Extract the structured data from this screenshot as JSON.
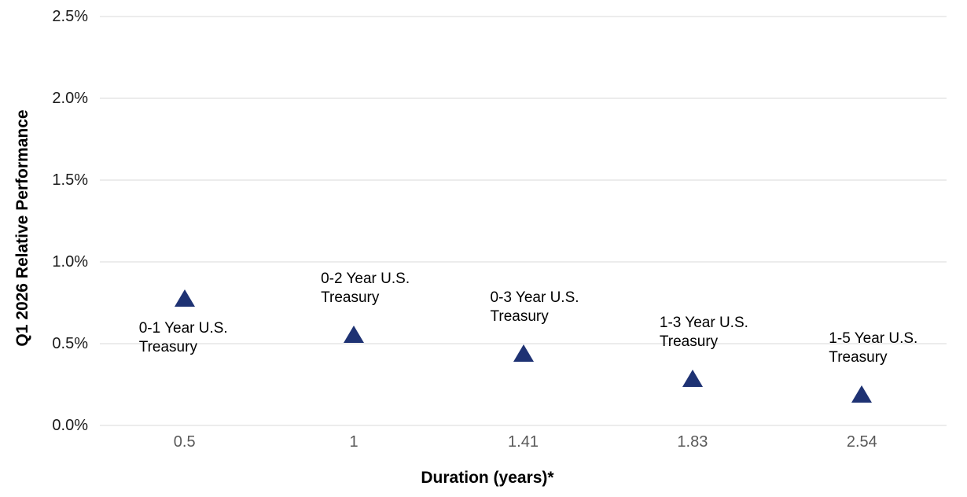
{
  "chart_data": {
    "type": "scatter",
    "title": "",
    "xlabel": "Duration (years)*",
    "ylabel": "Q1 2026 Relative Performance",
    "x_axis": {
      "type": "category",
      "tick_labels": [
        "0.5",
        "1",
        "1.41",
        "1.83",
        "2.54"
      ]
    },
    "y_axis": {
      "range": [
        0,
        2.5
      ],
      "unit": "percent",
      "ticks": [
        {
          "label": "0.0%",
          "value": 0
        },
        {
          "label": "0.5%",
          "value": 0.5
        },
        {
          "label": "1.0%",
          "value": 1
        },
        {
          "label": "1.5%",
          "value": 1.5
        },
        {
          "label": "2.0%",
          "value": 2
        },
        {
          "label": "2.5%",
          "value": 2.5
        }
      ]
    },
    "grid": "horizontal",
    "legend": "none",
    "marker": {
      "shape": "triangle-up",
      "color": "#1e3273"
    },
    "points": [
      {
        "duration": 0.5,
        "value_pct": 0.78,
        "label_lines": [
          "0-1 Year U.S.",
          "Treasury"
        ],
        "label_position": "below"
      },
      {
        "duration": 1,
        "value_pct": 0.56,
        "label_lines": [
          "0-2 Year U.S.",
          "Treasury"
        ],
        "label_position": "above"
      },
      {
        "duration": 1.41,
        "value_pct": 0.44,
        "label_lines": [
          "0-3 Year U.S.",
          "Treasury"
        ],
        "label_position": "above"
      },
      {
        "duration": 1.83,
        "value_pct": 0.29,
        "label_lines": [
          "1-3 Year U.S.",
          "Treasury"
        ],
        "label_position": "above"
      },
      {
        "duration": 2.54,
        "value_pct": 0.19,
        "label_lines": [
          "1-5 Year U.S.",
          "Treasury"
        ],
        "label_position": "above"
      }
    ]
  }
}
